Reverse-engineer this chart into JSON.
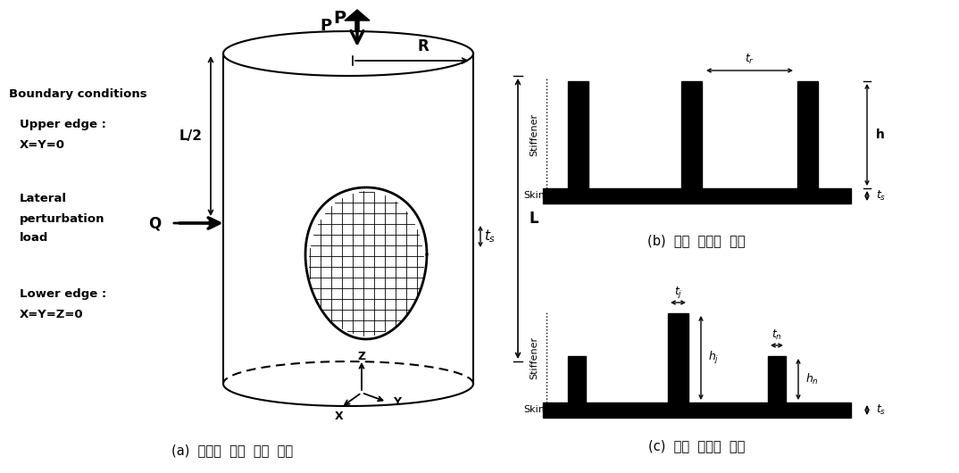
{
  "title_a": "(a)  보강된  원통  구조  형상",
  "title_b": "(b)  직교  그리드  형상",
  "title_c": "(c)  이종  그리드  형상",
  "bg_color": "#ffffff",
  "black": "#000000"
}
